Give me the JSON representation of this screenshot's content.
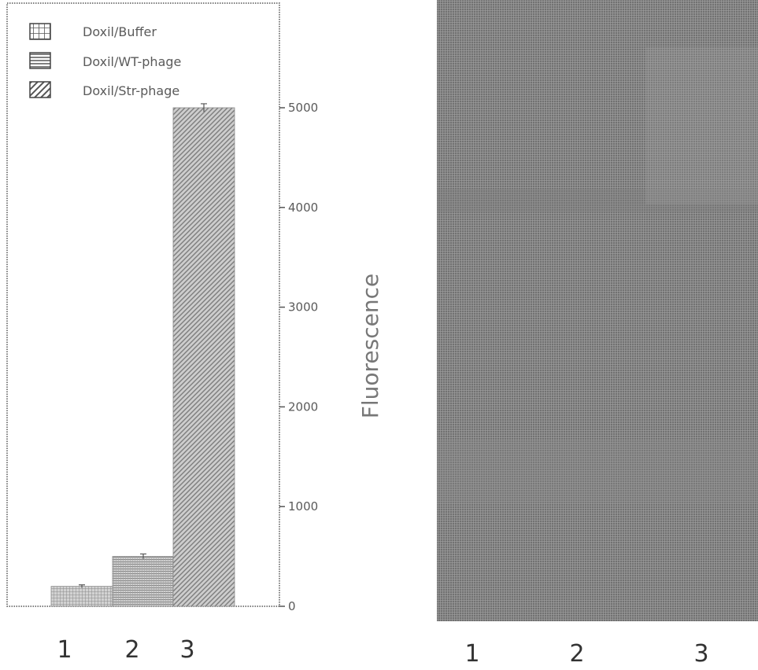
{
  "chart_data": {
    "type": "bar",
    "categories": [
      "1",
      "2",
      "3"
    ],
    "values": [
      200,
      500,
      5000
    ],
    "errors": [
      15,
      25,
      40
    ],
    "ylabel": "Fluorescence",
    "ylim": [
      0,
      5000
    ],
    "yticks": [
      0,
      1000,
      2000,
      3000,
      4000,
      5000
    ],
    "ytick_labels": [
      "0",
      "1000",
      "2000",
      "3000",
      "4000",
      "5000"
    ],
    "yaxis_position": "right",
    "legend": {
      "placement": "top-left",
      "entries": [
        {
          "label": "Doxil/Buffer",
          "pattern": "grid"
        },
        {
          "label": "Doxil/WT-phage",
          "pattern": "horizontal"
        },
        {
          "label": "Doxil/Str-phage",
          "pattern": "diagonal"
        }
      ]
    },
    "grid": false
  },
  "gel": {
    "lanes": [
      "1",
      "2",
      "3"
    ],
    "color": "#8c8c8c"
  }
}
